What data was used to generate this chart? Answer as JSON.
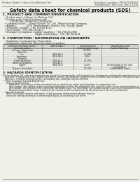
{
  "bg_color": "#f0efe8",
  "header_left": "Product Name: Lithium Ion Battery Cell",
  "header_right_line1": "Substance number: 399-049-00610",
  "header_right_line2": "Established / Revision: Dec.1 2016",
  "title": "Safety data sheet for chemical products (SDS)",
  "section1_title": "1. PRODUCT AND COMPANY IDENTIFICATION",
  "section1_lines": [
    "  • Product name: Lithium Ion Battery Cell",
    "  • Product code: Cylindrical-type cell",
    "         (UR18650A, UR18650S, UR18650A)",
    "  • Company name:    Sanyo Electric Co., Ltd., Mobile Energy Company",
    "  • Address:            2001  Kamitakanari, Sumoto-City, Hyogo, Japan",
    "  • Telephone number:  +81-799-26-4111",
    "  • Fax number: +81-799-26-4121",
    "  • Emergency telephone number (daytime): +81-799-26-2662",
    "                                         (Night and holiday): +81-799-26-2121"
  ],
  "section2_title": "2. COMPOSITION / INFORMATION ON INGREDIENTS",
  "section2_sub": "  • Substance or preparation: Preparation",
  "section2_sub2": "  • Information about the chemical nature of product:",
  "col_headers_row1": [
    "Common chemical name /",
    "CAS number /",
    "Concentration /",
    "Classification and"
  ],
  "col_headers_row2": [
    "Common name",
    "",
    "Concentration range",
    "hazard labeling"
  ],
  "table_rows": [
    [
      "Lithium cobalt oxide",
      "-",
      "30-60%",
      ""
    ],
    [
      "(LiMnCoO₄)",
      "",
      "",
      ""
    ],
    [
      "Iron",
      "7439-89-6",
      "15-25%",
      "-"
    ],
    [
      "Aluminum",
      "7429-90-5",
      "2-6%",
      "-"
    ],
    [
      "Graphite",
      "",
      "",
      ""
    ],
    [
      "(Flake graphite)",
      "7782-42-5",
      "10-25%",
      "-"
    ],
    [
      "(Artificial graphite)",
      "7782-42-5",
      "",
      ""
    ],
    [
      "Copper",
      "7440-50-8",
      "5-15%",
      "Sensitization of the skin\ngroup No.2"
    ],
    [
      "Organic electrolyte",
      "-",
      "10-20%",
      "Inflammable liquid"
    ]
  ],
  "section3_title": "3. HAZARDS IDENTIFICATION",
  "section3_paras": [
    "For this battery cell, chemical materials are stored in a hermetically sealed metal case, designed to withstand temperatures in presumed-use-environments during normal use. As a result, during normal use, there is no physical danger of ignition or vaporization and there is no danger of hazardous materials leakage.",
    "   However, if exposed to a fire, added mechanical shocks, decomposed, ambient electric without any measures, the gas release vent will be operated. The battery cell case will be breached at fire-extreme. Hazardous materials may be released.",
    "   Moreover, if heated strongly by the surrounding fire, solid gas may be emitted."
  ],
  "section3_bullet1_title": "• Most important hazard and effects:",
  "section3_bullet1_lines": [
    "    Human health effects:",
    "        Inhalation: The release of the electrolyte has an anesthesia action and stimulates in respiratory tract.",
    "        Skin contact: The release of the electrolyte stimulates a skin. The electrolyte skin contact causes a sore and stimulation on the skin.",
    "        Eye contact: The release of the electrolyte stimulates eyes. The electrolyte eye contact causes a sore and stimulation on the eye. Especially, a substance that causes a strong inflammation of the eye is contained.",
    "        Environmental effects: Since a battery cell remains in the environment, do not throw out it into the environment."
  ],
  "section3_bullet2_title": "• Specific hazards:",
  "section3_bullet2_lines": [
    "    If the electrolyte contacts with water, it will generate detrimental hydrogen fluoride.",
    "    Since the sealed electrolyte is inflammable liquid, do not bring close to fire."
  ]
}
